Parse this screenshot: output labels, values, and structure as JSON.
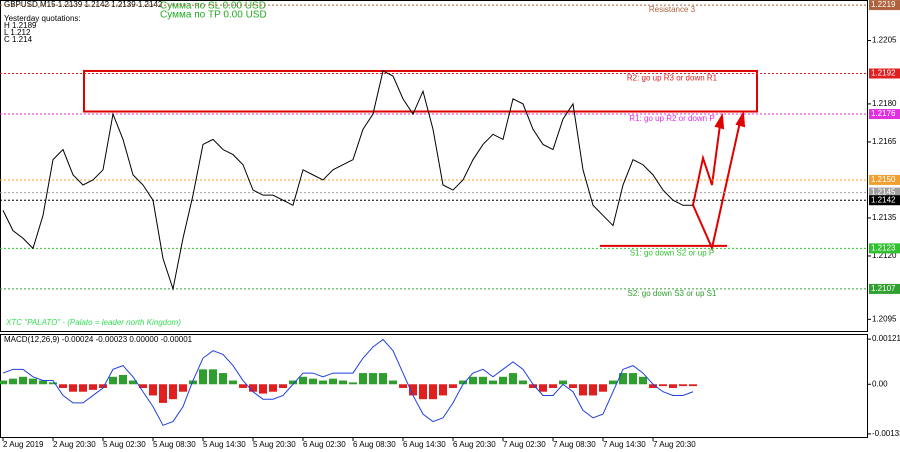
{
  "chart_data": {
    "type": "line",
    "title": "GBPUSD,M15  1.2139 1.2142 1.2139 1.2142",
    "info": [
      "Yesterday quotations:",
      "H 1.2189",
      "L 1.212",
      "C 1.214"
    ],
    "sums": [
      "Сумма по SL 0.00 USD",
      "Сумма по TP 0.00 USD"
    ],
    "footer_note": "XTC \"PALATO\" - (Palato = leader north Kingdom)",
    "categories": [
      "2 Aug 2019",
      null,
      null,
      null,
      null,
      "2 Aug 20:30",
      null,
      null,
      null,
      null,
      "5 Aug 02:30",
      null,
      null,
      null,
      null,
      "5 Aug 08:30",
      null,
      null,
      null,
      null,
      "5 Aug 14:30",
      null,
      null,
      null,
      null,
      "5 Aug 20:30",
      null,
      null,
      null,
      null,
      "6 Aug 02:30",
      null,
      null,
      null,
      null,
      "6 Aug 08:30",
      null,
      null,
      null,
      null,
      "6 Aug 14:30",
      null,
      null,
      null,
      null,
      "6 Aug 20:30",
      null,
      null,
      null,
      null,
      "7 Aug 02:30",
      null,
      null,
      null,
      null,
      "7 Aug 08:30",
      null,
      null,
      null,
      null,
      "7 Aug 14:30",
      null,
      null,
      null,
      null,
      "7 Aug 20:30",
      null,
      null,
      null,
      null
    ],
    "series": [
      {
        "color": "#000000",
        "values": [
          1.2138,
          1.213,
          1.2127,
          1.2123,
          1.2136,
          1.2158,
          1.2162,
          1.2152,
          1.2148,
          1.215,
          1.2154,
          1.2176,
          1.2166,
          1.2152,
          1.2148,
          1.2142,
          1.2119,
          1.2107,
          1.2127,
          1.2144,
          1.2164,
          1.2166,
          1.2162,
          1.216,
          1.2156,
          1.2146,
          1.2144,
          1.2144,
          1.2142,
          1.214,
          1.2154,
          1.2152,
          1.215,
          1.2154,
          1.2156,
          1.2158,
          1.217,
          1.2176,
          1.2193,
          1.2191,
          1.2182,
          1.2176,
          1.2185,
          1.217,
          1.2148,
          1.2146,
          1.215,
          1.2158,
          1.2164,
          1.2168,
          1.2166,
          1.2182,
          1.218,
          1.217,
          1.2164,
          1.2162,
          1.2174,
          1.218,
          1.2154,
          1.214,
          1.2136,
          1.2132,
          1.2148,
          1.2158,
          1.2156,
          1.2152,
          1.2146,
          1.2142,
          1.214,
          1.214
        ]
      }
    ],
    "ylim": [
      1.209,
      1.2221
    ],
    "yticks": [
      1.2205,
      {
        "value": 1.218,
        "label": "1.2180"
      },
      1.2165,
      1.2135,
      {
        "value": 1.212,
        "label": "1.2120"
      },
      1.2095
    ],
    "levels": [
      {
        "price": 1.2219,
        "text": "Resistance 3",
        "color": "#b0623f"
      },
      {
        "price": 1.2192,
        "text": "R2: go up R3 or down R1",
        "color": "#e02020"
      },
      {
        "price": 1.2176,
        "text": "R1: go up R2 or down P",
        "color": "#e030e0"
      },
      {
        "price": {
          "value": 1.215,
          "label": "1.2150"
        },
        "color": "#f0a030"
      },
      {
        "price": 1.2145,
        "color": "#a0a0a0"
      },
      {
        "price": 1.2142,
        "color": "#000000"
      },
      {
        "price": 1.2123,
        "text": "S1: go down S2 or up P",
        "color": "#30c030"
      },
      {
        "price": 1.2107,
        "text": "S2: go down S3 or up S1",
        "color": "#30a030"
      }
    ],
    "zone": [
      1.2177,
      1.2193
    ],
    "support": 1.2124,
    "macd": {
      "title": "MACD(12,26,9) -0.00024 -0.00023 0.00000 -0.00001",
      "ylim": [
        -0.00144,
        0.00132
      ],
      "yticks": [
        0.00121,
        {
          "value": 0,
          "label": "0.00"
        },
        -0.00133
      ],
      "up_color": "#2e9e2e",
      "down_color": "#e02020",
      "line_color": "#2040e0",
      "histogram": [
        0.0001,
        0.00015,
        0.0002,
        0.00015,
        0.0001,
        5e-05,
        -0.0001,
        -0.0002,
        -0.0002,
        -0.00015,
        -0.0001,
        0.0002,
        0.00025,
        0.0001,
        -0.0001,
        -0.0003,
        -0.0005,
        -0.0004,
        -0.0002,
        0.0001,
        0.0004,
        0.0004,
        0.0003,
        0.0001,
        -0.0001,
        -0.0002,
        -0.00025,
        -0.0002,
        -0.0001,
        0.0001,
        0.0002,
        0.00015,
        0.0001,
        0.00015,
        0.0001,
        5e-05,
        0.0003,
        0.0003,
        0.0003,
        0.0001,
        -0.0001,
        -0.0003,
        -0.0004,
        -0.0004,
        -0.0003,
        -0.0001,
        0.0001,
        0.0002,
        0.0002,
        0.0001,
        0.0002,
        0.0003,
        0.0001,
        -0.0001,
        -0.0002,
        -0.0001,
        0.0001,
        -0.0001,
        -0.0003,
        -0.0003,
        -0.0002,
        0.0001,
        0.0003,
        0.0003,
        0.0002,
        -0.0001,
        -5e-05,
        -0.0001,
        -5e-05,
        -5e-05
      ],
      "line": [
        0.0003,
        0.0004,
        0.0004,
        0.0002,
        0.0001,
        0.0001,
        -0.0003,
        -0.0005,
        -0.0005,
        -0.0003,
        -0.0001,
        0.0004,
        0.0005,
        0.0002,
        -0.0002,
        -0.0006,
        -0.0011,
        -0.001,
        -0.0006,
        0.0001,
        0.0007,
        0.0009,
        0.0008,
        0.0005,
        0.0001,
        -0.0002,
        -0.0004,
        -0.0004,
        -0.0003,
        0,
        0.0003,
        0.0003,
        0.0002,
        0.0003,
        0.0003,
        0.0003,
        0.0007,
        0.001,
        0.0012,
        0.0009,
        0.0003,
        -0.0003,
        -0.0008,
        -0.001,
        -0.0009,
        -0.0005,
        0,
        0.0003,
        0.0004,
        0.0002,
        0.0004,
        0.0006,
        0.0004,
        0,
        -0.0003,
        -0.0003,
        0,
        -0.0002,
        -0.0007,
        -0.0009,
        -0.0008,
        -0.0002,
        0.0004,
        0.0005,
        0.0003,
        0,
        -0.0002,
        -0.0003,
        -0.0003,
        -0.0002
      ]
    }
  }
}
